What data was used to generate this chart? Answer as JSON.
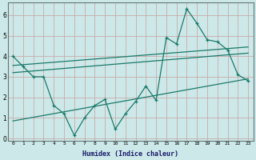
{
  "xlabel": "Humidex (Indice chaleur)",
  "x_values": [
    0,
    1,
    2,
    3,
    4,
    5,
    6,
    7,
    8,
    9,
    10,
    11,
    12,
    13,
    14,
    15,
    16,
    17,
    18,
    19,
    20,
    21,
    22,
    23
  ],
  "main_line_y": [
    4.0,
    3.5,
    3.0,
    3.0,
    1.6,
    1.2,
    0.15,
    1.0,
    1.6,
    1.9,
    0.45,
    1.2,
    1.8,
    2.55,
    1.85,
    4.9,
    4.6,
    6.3,
    5.6,
    4.8,
    4.7,
    4.3,
    3.1,
    2.8
  ],
  "trend1_x": [
    0,
    23
  ],
  "trend1_y": [
    3.55,
    4.45
  ],
  "trend2_x": [
    0,
    23
  ],
  "trend2_y": [
    3.2,
    4.15
  ],
  "trend3_x": [
    0,
    23
  ],
  "trend3_y": [
    0.85,
    2.9
  ],
  "color": "#1a7a6a",
  "bg_color": "#cce8e8",
  "grid_color": "#aac8c8",
  "ylim": [
    -0.1,
    6.6
  ],
  "xlim": [
    -0.5,
    23.5
  ],
  "yticks": [
    0,
    1,
    2,
    3,
    4,
    5,
    6
  ],
  "xticks": [
    0,
    1,
    2,
    3,
    4,
    5,
    6,
    7,
    8,
    9,
    10,
    11,
    12,
    13,
    14,
    15,
    16,
    17,
    18,
    19,
    20,
    21,
    22,
    23
  ]
}
